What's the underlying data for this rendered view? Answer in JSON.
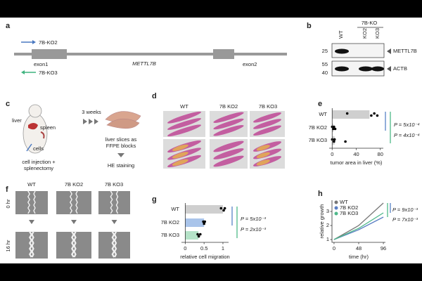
{
  "panel_labels": [
    "a",
    "b",
    "c",
    "d",
    "e",
    "f",
    "g",
    "h"
  ],
  "gene": {
    "ko2": "7B-KO2",
    "ko3": "7B-KO3",
    "exon1": "exon1",
    "exon2": "exon2",
    "gene": "METTL7B"
  },
  "blot": {
    "group": "7B-KO",
    "lanes": [
      "WT",
      "KO2",
      "KO3"
    ],
    "markers": [
      25,
      55,
      40
    ],
    "proteins": [
      "METTL7B",
      "ACTB"
    ]
  },
  "schematic": {
    "liver": "liver",
    "spleen": "spleen",
    "cells": "cells",
    "duration": "3 weeks",
    "slices": [
      "liver slices as",
      "FFPE blocks"
    ],
    "injection": [
      "cell injection +",
      "splenectomy"
    ],
    "staining": "HE staining"
  },
  "histology": {
    "columns": [
      "WT",
      "7B KO2",
      "7B KO3"
    ]
  },
  "scratch": {
    "columns": [
      "WT",
      "7B KO2",
      "7B KO3"
    ],
    "rows": [
      "0 hr",
      "16 hr"
    ]
  },
  "chart_data": [
    {
      "type": "bar",
      "orientation": "horizontal",
      "categories": [
        "WT",
        "7B KO2",
        "7B KO3"
      ],
      "values": [
        62,
        2,
        4
      ],
      "points": [
        [
          25,
          65,
          70,
          75
        ],
        [
          0,
          2,
          3,
          5
        ],
        [
          0,
          3,
          4,
          22
        ]
      ],
      "colors": [
        "#cfcfcf",
        "#cfcfcf",
        "#cfcfcf"
      ],
      "xlim": [
        -5,
        85
      ],
      "xticks": [
        0,
        40,
        80
      ],
      "xlabel": "tumor area in liver (%)",
      "annotations": [
        {
          "text": "P = 5x10⁻⁴",
          "color": "#4a78c0"
        },
        {
          "text": "P = 4x10⁻⁴",
          "color": "#3fb37f"
        }
      ]
    },
    {
      "type": "bar",
      "orientation": "horizontal",
      "categories": [
        "WT",
        "7B KO2",
        "7B KO3"
      ],
      "values": [
        1,
        0.5,
        0.35
      ],
      "points": [
        [
          0.95,
          1.02,
          1.05
        ],
        [
          0.48,
          0.5,
          0.52
        ],
        [
          0.33,
          0.36,
          0.4
        ]
      ],
      "colors": [
        "#cfcfcf",
        "#a9c4ea",
        "#b5e3c8"
      ],
      "xlim": [
        -0.1,
        1.15
      ],
      "xticks": [
        0,
        0.5,
        1
      ],
      "xlabel": "relative cell migration",
      "annotations": [
        {
          "text": "P = 5x10⁻³",
          "color": "#4a78c0"
        },
        {
          "text": "P = 2x10⁻³",
          "color": "#3fb37f"
        }
      ]
    },
    {
      "type": "line",
      "x": [
        0,
        48,
        96
      ],
      "xlim": [
        -4,
        100
      ],
      "ylim": [
        0.8,
        3.8
      ],
      "xticks": [
        0,
        48,
        96
      ],
      "yticks": [
        1,
        2,
        3
      ],
      "xlabel": "time (hr)",
      "ylabel": "relative growth",
      "legend": "top-left",
      "series": [
        {
          "name": "WT",
          "color": "#777777",
          "values": [
            1,
            2,
            3.6
          ]
        },
        {
          "name": "7B KO2",
          "color": "#5b7fc4",
          "values": [
            1,
            1.7,
            2.6
          ]
        },
        {
          "name": "7B KO3",
          "color": "#4fb88a",
          "values": [
            1,
            1.8,
            2.9
          ]
        }
      ],
      "annotations": [
        {
          "text": "P = 9x10⁻³",
          "color": "#3fb37f"
        },
        {
          "text": "P = 7x10⁻³",
          "color": "#4a78c0"
        }
      ]
    }
  ]
}
